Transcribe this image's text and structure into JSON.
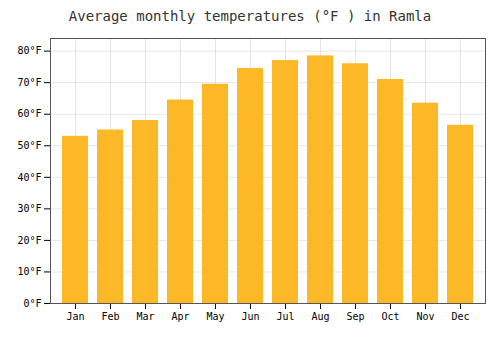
{
  "chart_data": {
    "type": "bar",
    "title": "Average monthly temperatures (°F ) in Ramla",
    "categories": [
      "Jan",
      "Feb",
      "Mar",
      "Apr",
      "May",
      "Jun",
      "Jul",
      "Aug",
      "Sep",
      "Oct",
      "Nov",
      "Dec"
    ],
    "values": [
      53,
      55,
      58,
      64.5,
      69.5,
      74.5,
      77,
      78.5,
      76,
      71,
      63.5,
      56.5
    ],
    "color": "#FDB827",
    "ylim": [
      0,
      84
    ],
    "yticks": [
      {
        "value": 0,
        "label": "0°F"
      },
      {
        "value": 10,
        "label": "10°F"
      },
      {
        "value": 20,
        "label": "20°F"
      },
      {
        "value": 30,
        "label": "30°F"
      },
      {
        "value": 40,
        "label": "40°F"
      },
      {
        "value": 50,
        "label": "50°F"
      },
      {
        "value": 60,
        "label": "60°F"
      },
      {
        "value": 70,
        "label": "70°F"
      },
      {
        "value": 80,
        "label": "80°F"
      }
    ],
    "grid": true
  }
}
